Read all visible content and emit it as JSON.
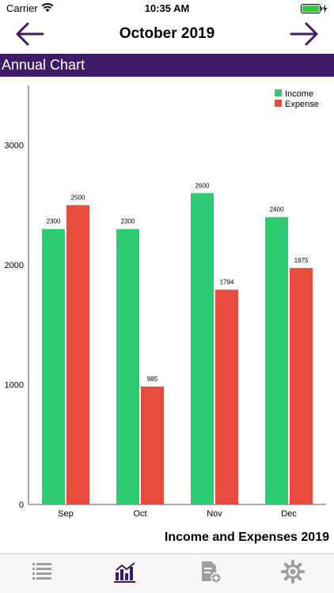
{
  "status_bar": {
    "carrier": "Carrier",
    "time": "10:35 AM"
  },
  "nav": {
    "title": "October 2019"
  },
  "section": {
    "title": "Annual Chart"
  },
  "chart_caption": "Income and Expenses 2019",
  "colors": {
    "header_bg": "#3f1a66",
    "income": "#2ecc71",
    "expense": "#e74c3c",
    "tab_active": "#3f1a66",
    "tab_inactive": "#9e9e9e"
  },
  "tabs": [
    {
      "icon": "list-icon",
      "active": false
    },
    {
      "icon": "bar-chart-icon",
      "active": true
    },
    {
      "icon": "add-document-icon",
      "active": false
    },
    {
      "icon": "gear-icon",
      "active": false
    }
  ],
  "chart_data": {
    "type": "bar",
    "categories": [
      "Sep",
      "Oct",
      "Nov",
      "Dec"
    ],
    "series": [
      {
        "name": "Income",
        "values": [
          2300,
          2300,
          2600,
          2400
        ],
        "color": "#2ecc71"
      },
      {
        "name": "Expense",
        "values": [
          2500,
          985,
          1794,
          1975
        ],
        "color": "#e74c3c"
      }
    ],
    "title": "",
    "xlabel": "",
    "ylabel": "",
    "ylim": [
      0,
      3500
    ],
    "yticks": [
      0,
      1000,
      2000,
      3000
    ],
    "grid": false,
    "legend": "top-right",
    "data_labels": true
  }
}
